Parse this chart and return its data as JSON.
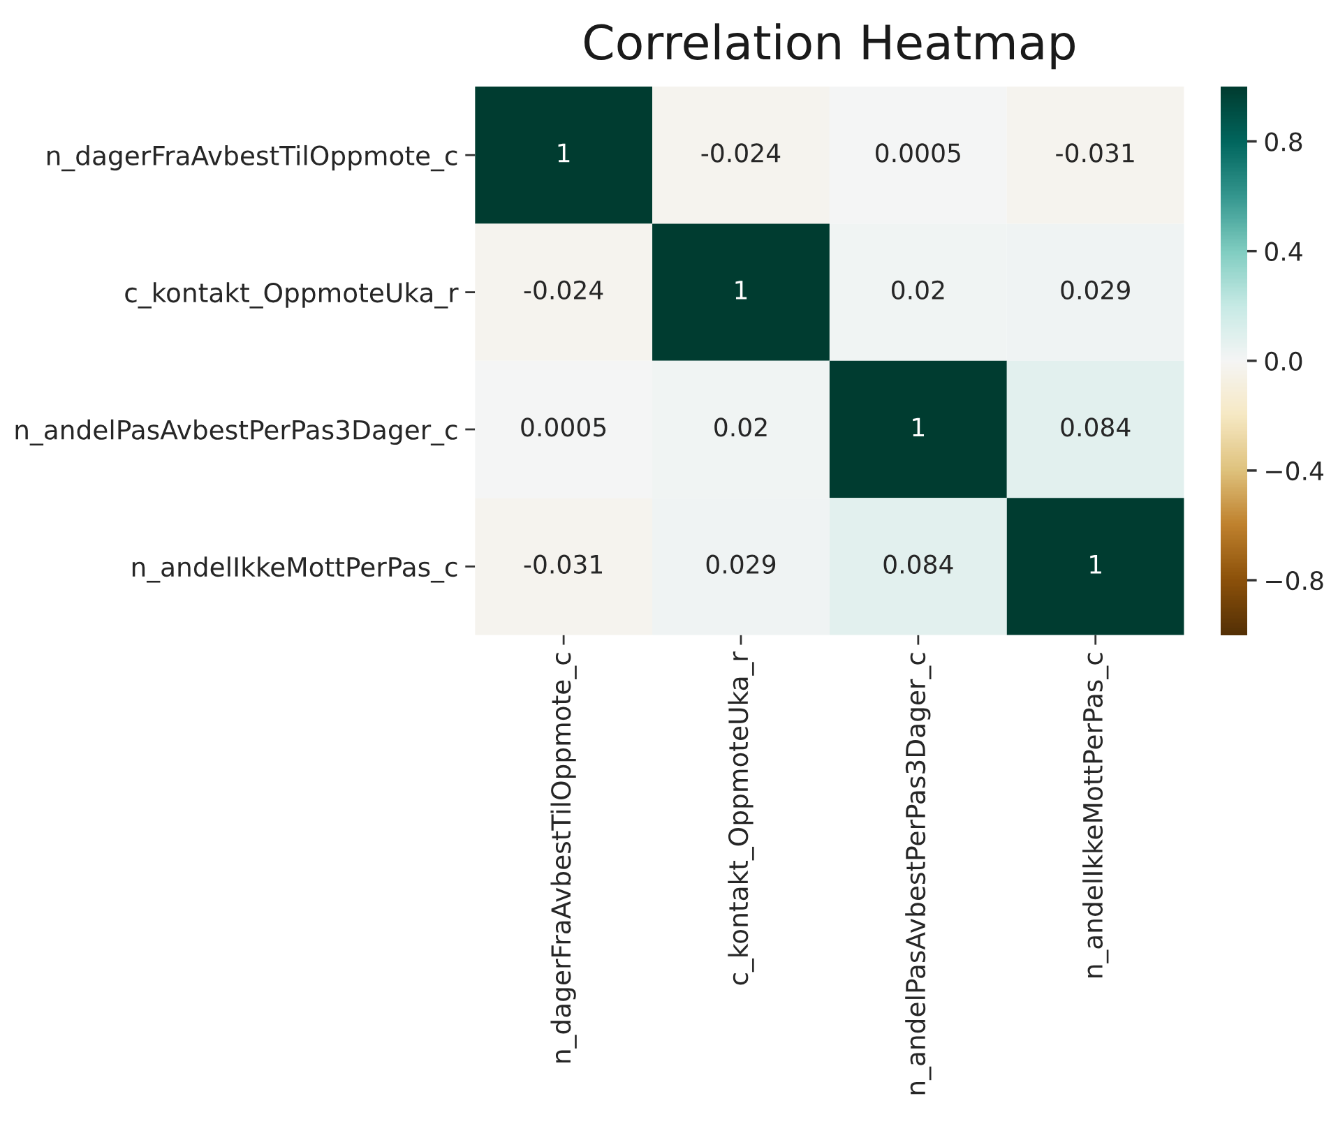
{
  "chart_data": {
    "type": "heatmap",
    "title": "Correlation Heatmap",
    "categories": [
      "n_dagerFraAvbestTilOppmote_c",
      "c_kontakt_OppmoteUka_r",
      "n_andelPasAvbestPerPas3Dager_c",
      "n_andelIkkeMottPerPas_c"
    ],
    "y_categories": [
      "n_dagerFraAvbestTilOppmote_c",
      "c_kontakt_OppmoteUka_r",
      "n_andelPasAvbestPerPas3Dager_c",
      "n_andelIkkeMottPerPas_c"
    ],
    "cells": [
      [
        1,
        -0.024,
        0.0005,
        -0.031
      ],
      [
        -0.024,
        1,
        0.02,
        0.029
      ],
      [
        0.0005,
        0.02,
        1,
        0.084
      ],
      [
        -0.031,
        0.029,
        0.084,
        1
      ]
    ],
    "data_labels": true,
    "clim": [
      -1,
      1
    ],
    "cticks": [
      {
        "value": -0.8,
        "label": "−0.8"
      },
      {
        "value": -0.4,
        "label": "−0.4"
      },
      {
        "value": 0.0,
        "label": "0.0"
      },
      {
        "value": 0.4,
        "label": "0.4"
      },
      {
        "value": 0.8,
        "label": "0.8"
      }
    ]
  }
}
